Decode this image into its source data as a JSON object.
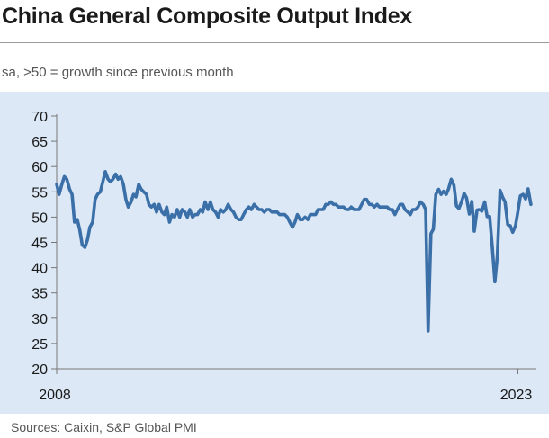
{
  "chart_data": {
    "type": "line",
    "title": "China General Composite Output Index",
    "subtitle": "sa, >50 = growth since previous month",
    "source": "Sources: Caixin, S&P Global PMI",
    "xlabel": "",
    "ylabel": "",
    "ylim": [
      20,
      70
    ],
    "yticks": [
      20,
      25,
      30,
      35,
      40,
      45,
      50,
      55,
      60,
      65,
      70
    ],
    "xlim": [
      2008.0,
      2023.6
    ],
    "xticks": [
      {
        "value": 2008.0,
        "label": "2008"
      },
      {
        "value": 2023.0,
        "label": "2023"
      }
    ],
    "grid": false,
    "series": [
      {
        "name": "China General Composite Output Index",
        "color": "#3a6fa8",
        "points": [
          [
            2008.0,
            56.5
          ],
          [
            2008.08,
            54.5
          ],
          [
            2008.17,
            56.5
          ],
          [
            2008.25,
            58.0
          ],
          [
            2008.33,
            57.5
          ],
          [
            2008.42,
            55.5
          ],
          [
            2008.5,
            54.5
          ],
          [
            2008.58,
            49.0
          ],
          [
            2008.67,
            49.5
          ],
          [
            2008.75,
            47.5
          ],
          [
            2008.83,
            44.5
          ],
          [
            2008.92,
            44.0
          ],
          [
            2009.0,
            45.5
          ],
          [
            2009.08,
            48.0
          ],
          [
            2009.17,
            49.0
          ],
          [
            2009.25,
            53.5
          ],
          [
            2009.33,
            54.5
          ],
          [
            2009.42,
            55.0
          ],
          [
            2009.5,
            57.0
          ],
          [
            2009.58,
            59.0
          ],
          [
            2009.67,
            57.5
          ],
          [
            2009.75,
            57.0
          ],
          [
            2009.83,
            57.5
          ],
          [
            2009.92,
            58.5
          ],
          [
            2010.0,
            57.5
          ],
          [
            2010.08,
            58.0
          ],
          [
            2010.17,
            56.5
          ],
          [
            2010.25,
            53.5
          ],
          [
            2010.33,
            52.0
          ],
          [
            2010.42,
            53.0
          ],
          [
            2010.5,
            54.5
          ],
          [
            2010.58,
            54.0
          ],
          [
            2010.67,
            56.5
          ],
          [
            2010.75,
            55.5
          ],
          [
            2010.83,
            55.0
          ],
          [
            2010.92,
            54.5
          ],
          [
            2011.0,
            52.5
          ],
          [
            2011.08,
            52.0
          ],
          [
            2011.17,
            52.5
          ],
          [
            2011.25,
            51.0
          ],
          [
            2011.33,
            52.5
          ],
          [
            2011.42,
            51.0
          ],
          [
            2011.5,
            50.5
          ],
          [
            2011.58,
            52.0
          ],
          [
            2011.67,
            49.0
          ],
          [
            2011.75,
            50.5
          ],
          [
            2011.83,
            50.0
          ],
          [
            2011.92,
            51.5
          ],
          [
            2012.0,
            50.0
          ],
          [
            2012.08,
            51.5
          ],
          [
            2012.17,
            51.0
          ],
          [
            2012.25,
            50.0
          ],
          [
            2012.33,
            51.5
          ],
          [
            2012.42,
            50.0
          ],
          [
            2012.5,
            50.5
          ],
          [
            2012.58,
            50.5
          ],
          [
            2012.67,
            51.5
          ],
          [
            2012.75,
            51.0
          ],
          [
            2012.83,
            53.0
          ],
          [
            2012.92,
            51.5
          ],
          [
            2013.0,
            53.0
          ],
          [
            2013.08,
            51.5
          ],
          [
            2013.17,
            51.0
          ],
          [
            2013.25,
            50.0
          ],
          [
            2013.33,
            51.5
          ],
          [
            2013.42,
            51.0
          ],
          [
            2013.5,
            51.5
          ],
          [
            2013.58,
            52.5
          ],
          [
            2013.67,
            51.5
          ],
          [
            2013.75,
            51.0
          ],
          [
            2013.83,
            50.0
          ],
          [
            2013.92,
            49.5
          ],
          [
            2014.0,
            49.5
          ],
          [
            2014.08,
            50.5
          ],
          [
            2014.17,
            51.5
          ],
          [
            2014.25,
            52.0
          ],
          [
            2014.33,
            51.5
          ],
          [
            2014.42,
            52.5
          ],
          [
            2014.5,
            52.0
          ],
          [
            2014.58,
            51.5
          ],
          [
            2014.67,
            51.5
          ],
          [
            2014.75,
            51.0
          ],
          [
            2014.83,
            51.5
          ],
          [
            2014.92,
            51.5
          ],
          [
            2015.0,
            51.0
          ],
          [
            2015.08,
            51.0
          ],
          [
            2015.17,
            51.0
          ],
          [
            2015.25,
            50.5
          ],
          [
            2015.33,
            50.5
          ],
          [
            2015.42,
            50.5
          ],
          [
            2015.5,
            50.0
          ],
          [
            2015.58,
            49.0
          ],
          [
            2015.67,
            48.0
          ],
          [
            2015.75,
            49.0
          ],
          [
            2015.83,
            50.5
          ],
          [
            2015.92,
            49.5
          ],
          [
            2016.0,
            49.5
          ],
          [
            2016.08,
            50.0
          ],
          [
            2016.17,
            49.5
          ],
          [
            2016.25,
            50.5
          ],
          [
            2016.33,
            50.5
          ],
          [
            2016.42,
            50.5
          ],
          [
            2016.5,
            51.5
          ],
          [
            2016.58,
            51.5
          ],
          [
            2016.67,
            51.5
          ],
          [
            2016.75,
            52.5
          ],
          [
            2016.83,
            52.5
          ],
          [
            2016.92,
            53.0
          ],
          [
            2017.0,
            52.5
          ],
          [
            2017.08,
            52.5
          ],
          [
            2017.17,
            52.0
          ],
          [
            2017.25,
            52.0
          ],
          [
            2017.33,
            52.0
          ],
          [
            2017.42,
            51.5
          ],
          [
            2017.5,
            51.5
          ],
          [
            2017.58,
            52.0
          ],
          [
            2017.67,
            51.5
          ],
          [
            2017.75,
            51.5
          ],
          [
            2017.83,
            51.5
          ],
          [
            2017.92,
            52.5
          ],
          [
            2018.0,
            53.5
          ],
          [
            2018.08,
            53.5
          ],
          [
            2018.17,
            52.5
          ],
          [
            2018.25,
            52.5
          ],
          [
            2018.33,
            52.0
          ],
          [
            2018.42,
            52.5
          ],
          [
            2018.5,
            52.0
          ],
          [
            2018.58,
            52.0
          ],
          [
            2018.67,
            52.0
          ],
          [
            2018.75,
            52.0
          ],
          [
            2018.83,
            51.5
          ],
          [
            2018.92,
            51.5
          ],
          [
            2019.0,
            50.5
          ],
          [
            2019.08,
            51.5
          ],
          [
            2019.17,
            52.5
          ],
          [
            2019.25,
            52.5
          ],
          [
            2019.33,
            51.5
          ],
          [
            2019.42,
            51.0
          ],
          [
            2019.5,
            50.5
          ],
          [
            2019.58,
            51.5
          ],
          [
            2019.67,
            51.5
          ],
          [
            2019.75,
            52.0
          ],
          [
            2019.83,
            53.0
          ],
          [
            2019.92,
            52.5
          ],
          [
            2020.0,
            51.5
          ],
          [
            2020.08,
            27.5
          ],
          [
            2020.17,
            46.7
          ],
          [
            2020.25,
            47.6
          ],
          [
            2020.33,
            54.5
          ],
          [
            2020.42,
            55.5
          ],
          [
            2020.5,
            54.5
          ],
          [
            2020.58,
            55.1
          ],
          [
            2020.67,
            54.5
          ],
          [
            2020.75,
            55.7
          ],
          [
            2020.83,
            57.5
          ],
          [
            2020.92,
            56.3
          ],
          [
            2021.0,
            52.2
          ],
          [
            2021.08,
            51.7
          ],
          [
            2021.17,
            53.1
          ],
          [
            2021.25,
            54.7
          ],
          [
            2021.33,
            53.8
          ],
          [
            2021.42,
            50.6
          ],
          [
            2021.5,
            53.1
          ],
          [
            2021.58,
            47.2
          ],
          [
            2021.67,
            51.4
          ],
          [
            2021.75,
            51.5
          ],
          [
            2021.83,
            51.2
          ],
          [
            2021.92,
            53.0
          ],
          [
            2022.0,
            50.1
          ],
          [
            2022.08,
            50.1
          ],
          [
            2022.17,
            43.9
          ],
          [
            2022.25,
            37.2
          ],
          [
            2022.33,
            42.2
          ],
          [
            2022.42,
            55.3
          ],
          [
            2022.5,
            54.0
          ],
          [
            2022.58,
            53.0
          ],
          [
            2022.67,
            48.5
          ],
          [
            2022.75,
            48.3
          ],
          [
            2022.83,
            47.0
          ],
          [
            2022.92,
            48.3
          ],
          [
            2023.0,
            51.1
          ],
          [
            2023.08,
            54.2
          ],
          [
            2023.17,
            54.5
          ],
          [
            2023.25,
            53.6
          ],
          [
            2023.33,
            55.6
          ],
          [
            2023.42,
            52.5
          ]
        ]
      }
    ]
  }
}
